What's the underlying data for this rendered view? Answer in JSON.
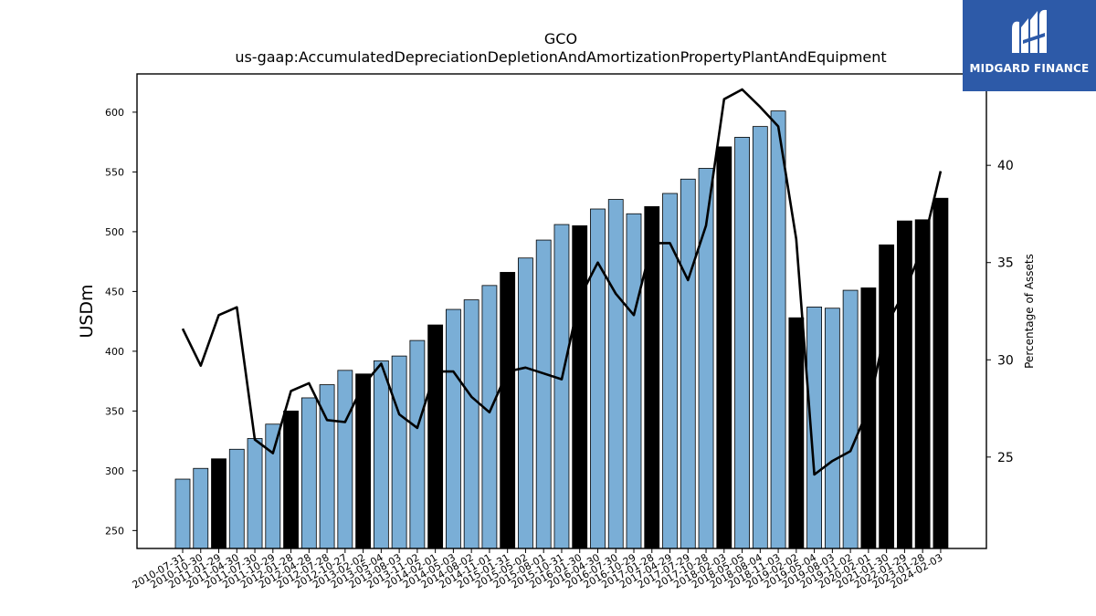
{
  "logo": {
    "text": "MIDGARD FINANCE",
    "icon": "midgard-m-icon",
    "background": "#2d5aa8"
  },
  "colors": {
    "bar_normal": "#7aaed6",
    "bar_highlight": "#000000",
    "line": "#000000"
  },
  "chart_data": {
    "type": "bar",
    "title": "GCO",
    "subtitle": "us-gaap:AccumulatedDepreciationDepletionAndAmortizationPropertyPlantAndEquipment",
    "ylabel": "USDm",
    "ylabel_right": "Percentage of Assets",
    "ylim": [
      235,
      632
    ],
    "ylim_right": [
      20.3,
      44.7
    ],
    "yticks": [
      250,
      300,
      350,
      400,
      450,
      500,
      550,
      600
    ],
    "yticks_right": [
      25,
      30,
      35,
      40
    ],
    "categories": [
      "2010-07-31",
      "2010-10-30",
      "2011-01-29",
      "2011-04-30",
      "2011-07-30",
      "2011-10-29",
      "2012-01-28",
      "2012-04-28",
      "2012-07-28",
      "2012-10-27",
      "2013-02-02",
      "2013-05-04",
      "2013-08-03",
      "2013-11-02",
      "2014-02-01",
      "2014-05-03",
      "2014-08-02",
      "2014-11-01",
      "2015-01-31",
      "2015-05-02",
      "2015-08-01",
      "2015-10-31",
      "2016-01-30",
      "2016-04-30",
      "2016-07-30",
      "2016-10-29",
      "2017-01-28",
      "2017-04-29",
      "2017-07-29",
      "2017-10-28",
      "2018-02-03",
      "2018-05-05",
      "2018-08-04",
      "2018-11-03",
      "2019-02-02",
      "2019-05-04",
      "2019-08-03",
      "2019-11-02",
      "2020-02-01",
      "2021-01-30",
      "2022-01-29",
      "2023-01-28",
      "2024-02-03"
    ],
    "series": [
      {
        "type": "bar",
        "values": [
          293,
          302,
          310,
          318,
          327,
          339,
          350,
          361,
          372,
          384,
          381,
          392,
          396,
          409,
          422,
          435,
          443,
          455,
          466,
          478,
          493,
          506,
          505,
          519,
          527,
          515,
          521,
          532,
          544,
          553,
          571,
          579,
          588,
          601,
          428,
          437,
          436,
          451,
          453,
          489,
          509,
          510,
          528
        ],
        "highlight": [
          false,
          false,
          true,
          false,
          false,
          false,
          true,
          false,
          false,
          false,
          true,
          false,
          false,
          false,
          true,
          false,
          false,
          false,
          true,
          false,
          false,
          false,
          true,
          false,
          false,
          false,
          true,
          false,
          false,
          false,
          true,
          false,
          false,
          false,
          true,
          false,
          false,
          false,
          true,
          true,
          true,
          true,
          true
        ]
      },
      {
        "type": "line",
        "axis": "right",
        "values": [
          31.6,
          29.7,
          32.3,
          32.7,
          25.9,
          25.2,
          28.4,
          28.8,
          26.9,
          26.8,
          28.7,
          29.8,
          27.2,
          26.5,
          29.4,
          29.4,
          28.1,
          27.3,
          29.4,
          29.6,
          29.3,
          29.0,
          33.2,
          35.0,
          33.4,
          32.3,
          36.0,
          36.0,
          34.1,
          36.9,
          43.4,
          43.9,
          43.0,
          42.0,
          36.2,
          24.1,
          24.8,
          25.3,
          27.5,
          31.8,
          33.5,
          35.8,
          39.7
        ]
      }
    ],
    "grid": false,
    "legend": "none"
  }
}
